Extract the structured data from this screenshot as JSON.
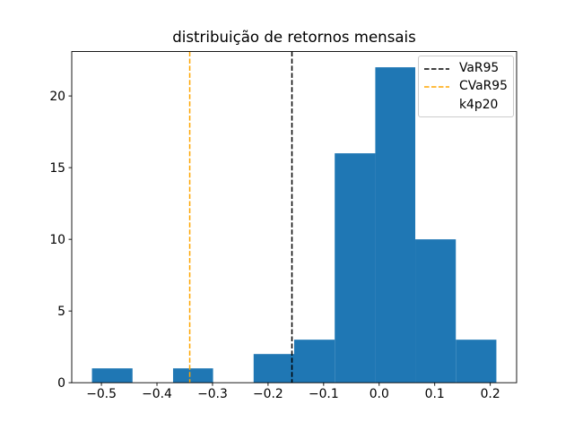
{
  "chart_data": {
    "type": "bar",
    "subtype": "histogram",
    "title": "distribuição de retornos mensais",
    "xlabel": "",
    "ylabel": "",
    "bar_color": "#1f77b4",
    "bin_edges": [
      -0.517,
      -0.444,
      -0.371,
      -0.299,
      -0.226,
      -0.153,
      -0.08,
      -0.007,
      0.065,
      0.138,
      0.211
    ],
    "counts": [
      1,
      0,
      1,
      0,
      2,
      3,
      16,
      22,
      10,
      3
    ],
    "xlim": [
      -0.5534,
      0.2474
    ],
    "ylim": [
      0,
      23.1
    ],
    "x_ticks": [
      -0.5,
      -0.4,
      -0.3,
      -0.2,
      -0.1,
      0.0,
      0.1,
      0.2
    ],
    "x_tick_labels": [
      "−0.5",
      "−0.4",
      "−0.3",
      "−0.2",
      "−0.1",
      "0.0",
      "0.1",
      "0.2"
    ],
    "y_ticks": [
      0,
      5,
      10,
      15,
      20
    ],
    "y_tick_labels": [
      "0",
      "5",
      "10",
      "15",
      "20"
    ],
    "grid": false,
    "vlines": [
      {
        "name": "VaR95",
        "x": -0.157,
        "color": "#000000",
        "style": "dashed"
      },
      {
        "name": "CVaR95",
        "x": -0.341,
        "color": "#ffa500",
        "style": "dashed"
      }
    ],
    "legend": {
      "position": "upper right",
      "entries": [
        {
          "label": "VaR95",
          "handle": "dashed-line",
          "color": "#000000"
        },
        {
          "label": "CVaR95",
          "handle": "dashed-line",
          "color": "#ffa500"
        },
        {
          "label": "k4p20",
          "handle": "none",
          "color": "none"
        }
      ]
    }
  }
}
